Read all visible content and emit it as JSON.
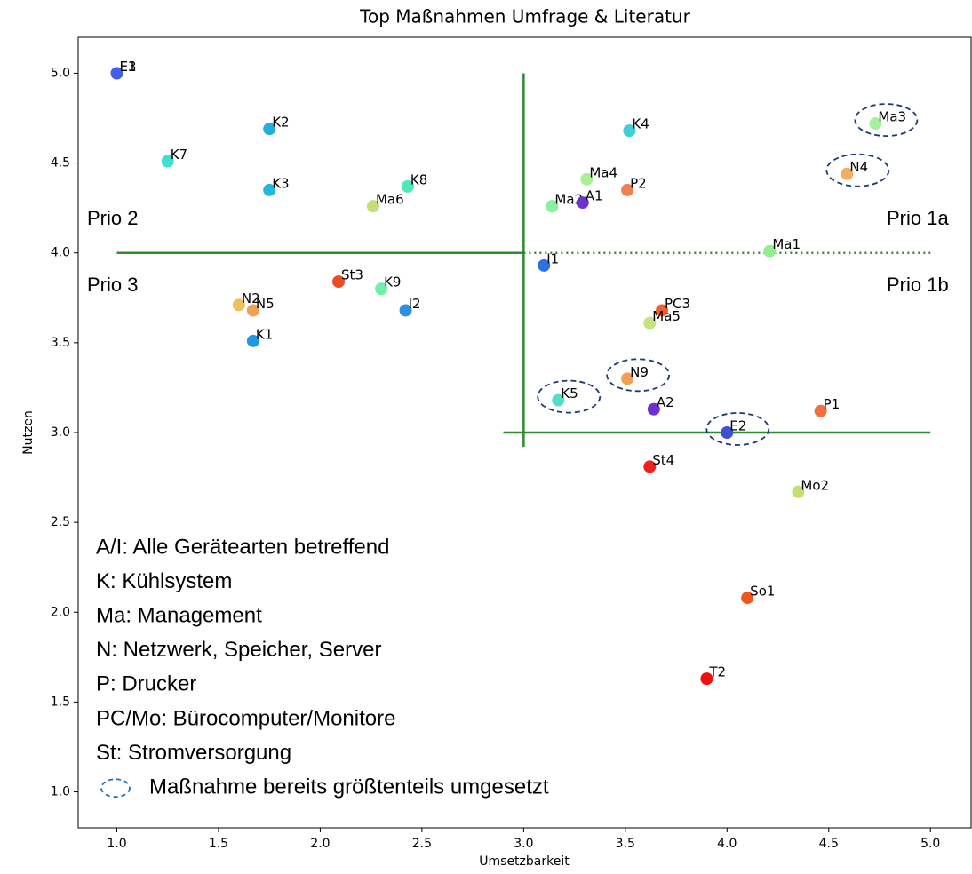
{
  "chart_data": {
    "type": "scatter",
    "title": "Top Maßnahmen Umfrage & Literatur",
    "x_label": "Umsetzbarkeit",
    "y_label": "Nutzen",
    "labels": [
      "E1",
      "E3",
      "K2",
      "K7",
      "K3",
      "K8",
      "Ma6",
      "St3",
      "K9",
      "N2",
      "N5",
      "I2",
      "K1",
      "I1",
      "Ma2",
      "A1",
      "Ma4",
      "P2",
      "K4",
      "Ma3",
      "N4",
      "Ma1",
      "PC3",
      "Ma5",
      "N9",
      "K5",
      "A2",
      "E2",
      "P1",
      "St4",
      "Mo2",
      "So1",
      "T2"
    ],
    "x": [
      1.0,
      1.0,
      1.75,
      1.25,
      1.75,
      2.43,
      2.26,
      2.09,
      2.3,
      1.6,
      1.67,
      2.42,
      1.67,
      3.1,
      3.14,
      3.29,
      3.31,
      3.51,
      3.52,
      4.73,
      4.59,
      4.21,
      3.68,
      3.62,
      3.51,
      3.17,
      3.64,
      4.0,
      4.46,
      3.62,
      4.35,
      4.1,
      3.9
    ],
    "y": [
      5.0,
      5.0,
      4.69,
      4.51,
      4.35,
      4.37,
      4.26,
      3.84,
      3.8,
      3.71,
      3.68,
      3.68,
      3.51,
      3.93,
      4.26,
      4.28,
      4.41,
      4.35,
      4.68,
      4.72,
      4.44,
      4.01,
      3.68,
      3.61,
      3.3,
      3.18,
      3.13,
      3.0,
      3.12,
      2.81,
      2.67,
      2.08,
      1.63
    ],
    "colors": [
      "#4a5ee0",
      "#4060e8",
      "#22aee0",
      "#40e0d0",
      "#22b8e0",
      "#50e8b8",
      "#c2e074",
      "#f04a22",
      "#70f0a8",
      "#f0c060",
      "#f0a050",
      "#3090e0",
      "#2296e0",
      "#3070e0",
      "#88f0a0",
      "#7030d0",
      "#a8f094",
      "#f08050",
      "#40d0d4",
      "#a8f0a0",
      "#f0b060",
      "#90f090",
      "#f06030",
      "#c4e484",
      "#f0a050",
      "#54e0c4",
      "#7030d0",
      "#4050d0",
      "#f07040",
      "#f02020",
      "#c4e074",
      "#f05522",
      "#f01010"
    ],
    "circled": [
      false,
      false,
      false,
      false,
      false,
      false,
      false,
      false,
      false,
      false,
      false,
      false,
      false,
      false,
      false,
      false,
      false,
      false,
      false,
      true,
      true,
      false,
      false,
      false,
      true,
      true,
      false,
      true,
      false,
      false,
      false,
      false,
      false
    ],
    "lines": [
      {
        "x": [
          3.0,
          3.0
        ],
        "y": [
          2.92,
          5.0
        ],
        "style": "solid"
      },
      {
        "x": [
          1.0,
          3.0
        ],
        "y": [
          4.0,
          4.0
        ],
        "style": "solid"
      },
      {
        "x": [
          3.0,
          5.0
        ],
        "y": [
          4.0,
          4.0
        ],
        "style": "dotted"
      },
      {
        "x": [
          2.9,
          5.0
        ],
        "y": [
          3.0,
          3.0
        ],
        "style": "solid"
      }
    ],
    "line_color": "#2e8b2e",
    "quadrant_labels": [
      "Prio 2",
      "Prio 3",
      "Prio 1a",
      "Prio 1b"
    ],
    "notes": [
      "A/I: Alle Gerätearten betreffend",
      "K: Kühlsystem",
      "Ma: Management",
      "N: Netzwerk, Speicher, Server",
      "P: Drucker",
      "PC/Mo: Bürocomputer/Monitore",
      "St: Stromversorgung",
      "Maßnahme bereits größtenteils umgesetzt"
    ],
    "xlim": [
      0.81,
      5.2
    ],
    "ylim": [
      0.8,
      5.2
    ],
    "xticks": [
      {
        "value": 1.0,
        "label": "1.0"
      },
      1.5,
      {
        "value": 2.0,
        "label": "2.0"
      },
      2.5,
      {
        "value": 3.0,
        "label": "3.0"
      },
      3.5,
      {
        "value": 4.0,
        "label": "4.0"
      },
      4.5,
      {
        "value": 5.0,
        "label": "5.0"
      }
    ],
    "yticks": [
      {
        "value": 1.0,
        "label": "1.0"
      },
      1.5,
      {
        "value": 2.0,
        "label": "2.0"
      },
      2.5,
      {
        "value": 3.0,
        "label": "3.0"
      },
      3.5,
      {
        "value": 4.0,
        "label": "4.0"
      },
      4.5,
      {
        "value": 5.0,
        "label": "5.0"
      }
    ]
  }
}
